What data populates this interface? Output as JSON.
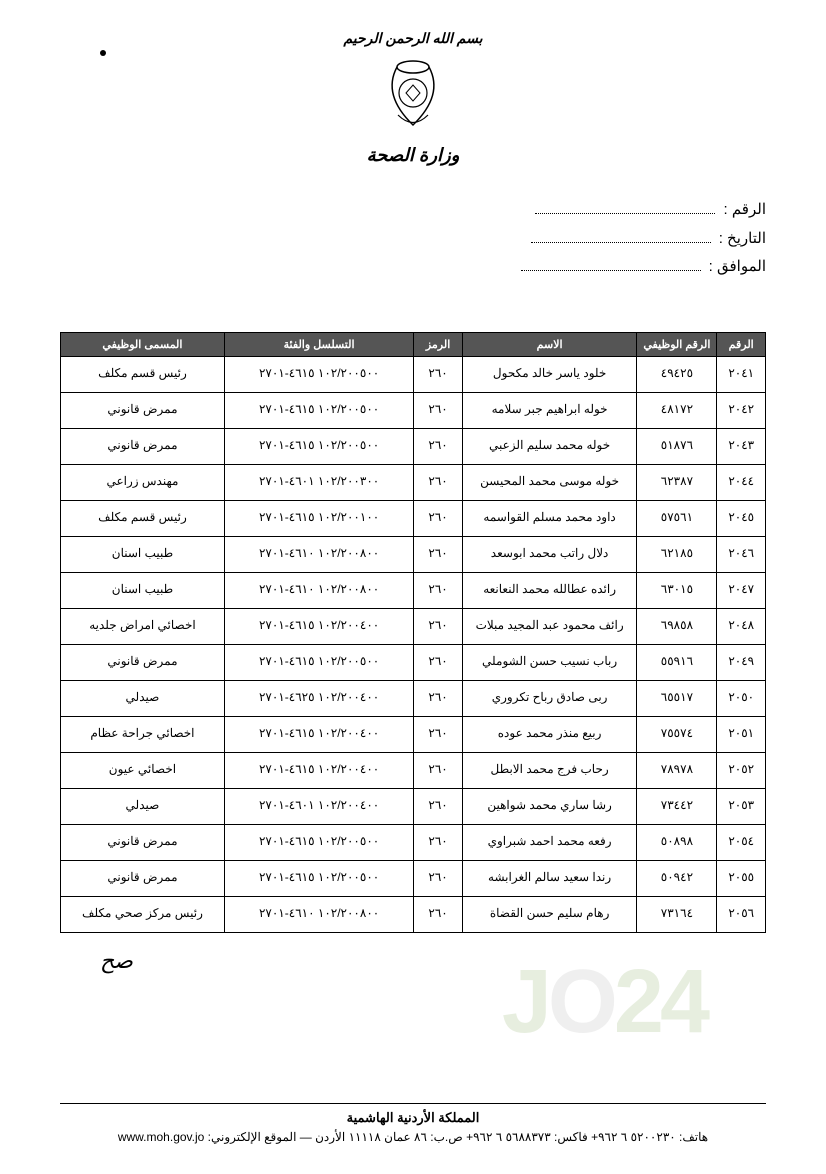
{
  "header": {
    "bismillah": "بسم الله الرحمن الرحيم",
    "ministry": "وزارة الصحة"
  },
  "meta": {
    "number_label": "الرقم :",
    "date_label": "التاريخ :",
    "corresponding_label": "الموافق :"
  },
  "table": {
    "columns": [
      "الرقم",
      "الرقم الوظيفي",
      "الاسم",
      "الرمز",
      "التسلسل والفئة",
      "المسمى الوظيفي"
    ],
    "col_widths_pct": [
      7,
      8,
      26,
      7,
      28,
      24
    ],
    "header_bg": "#555555",
    "header_fg": "#ffffff",
    "border_color": "#000000",
    "font_size": 12,
    "rows": [
      {
        "seq": "٢٠٤١",
        "id": "٤٩٤٢٥",
        "name": "خلود ياسر خالد مكحول",
        "code": "٢٦٠",
        "acct": "١٠٢/٢٠٠٥٠٠ ٤٦١٥-٢٧٠١",
        "title": "رئيس قسم مكلف"
      },
      {
        "seq": "٢٠٤٢",
        "id": "٤٨١٧٢",
        "name": "خوله ابراهيم جبر سلامه",
        "code": "٢٦٠",
        "acct": "١٠٢/٢٠٠٥٠٠ ٤٦١٥-٢٧٠١",
        "title": "ممرض قانوني"
      },
      {
        "seq": "٢٠٤٣",
        "id": "٥١٨٧٦",
        "name": "خوله محمد سليم الزعبي",
        "code": "٢٦٠",
        "acct": "١٠٢/٢٠٠٥٠٠ ٤٦١٥-٢٧٠١",
        "title": "ممرض قانوني"
      },
      {
        "seq": "٢٠٤٤",
        "id": "٦٢٣٨٧",
        "name": "خوله موسى محمد المحيسن",
        "code": "٢٦٠",
        "acct": "١٠٢/٢٠٠٣٠٠ ٤٦٠١-٢٧٠١",
        "title": "مهندس زراعي"
      },
      {
        "seq": "٢٠٤٥",
        "id": "٥٧٥٦١",
        "name": "داود محمد مسلم القواسمه",
        "code": "٢٦٠",
        "acct": "١٠٢/٢٠٠١٠٠ ٤٦١٥-٢٧٠١",
        "title": "رئيس قسم مكلف"
      },
      {
        "seq": "٢٠٤٦",
        "id": "٦٢١٨٥",
        "name": "دلال راتب محمد ابوسعد",
        "code": "٢٦٠",
        "acct": "١٠٢/٢٠٠٨٠٠ ٤٦١٠-٢٧٠١",
        "title": "طبيب اسنان"
      },
      {
        "seq": "٢٠٤٧",
        "id": "٦٣٠١٥",
        "name": "رائده عطالله محمد النعانعه",
        "code": "٢٦٠",
        "acct": "١٠٢/٢٠٠٨٠٠ ٤٦١٠-٢٧٠١",
        "title": "طبيب اسنان"
      },
      {
        "seq": "٢٠٤٨",
        "id": "٦٩٨٥٨",
        "name": "رائف محمود عبد المجيد مبلات",
        "code": "٢٦٠",
        "acct": "١٠٢/٢٠٠٤٠٠ ٤٦١٥-٢٧٠١",
        "title": "اخصائي امراض جلديه"
      },
      {
        "seq": "٢٠٤٩",
        "id": "٥٥٩١٦",
        "name": "رباب نسيب حسن الشوملي",
        "code": "٢٦٠",
        "acct": "١٠٢/٢٠٠٥٠٠ ٤٦١٥-٢٧٠١",
        "title": "ممرض قانوني"
      },
      {
        "seq": "٢٠٥٠",
        "id": "٦٥٥١٧",
        "name": "ربى صادق رباح تكروري",
        "code": "٢٦٠",
        "acct": "١٠٢/٢٠٠٤٠٠ ٤٦٢٥-٢٧٠١",
        "title": "صيدلي"
      },
      {
        "seq": "٢٠٥١",
        "id": "٧٥٥٧٤",
        "name": "ربيع منذر محمد عوده",
        "code": "٢٦٠",
        "acct": "١٠٢/٢٠٠٤٠٠ ٤٦١٥-٢٧٠١",
        "title": "اخصائي جراحة عظام"
      },
      {
        "seq": "٢٠٥٢",
        "id": "٧٨٩٧٨",
        "name": "رحاب فرج محمد الابطل",
        "code": "٢٦٠",
        "acct": "١٠٢/٢٠٠٤٠٠ ٤٦١٥-٢٧٠١",
        "title": "اخصائي عيون"
      },
      {
        "seq": "٢٠٥٣",
        "id": "٧٣٤٤٢",
        "name": "رشا ساري محمد شواهين",
        "code": "٢٦٠",
        "acct": "١٠٢/٢٠٠٤٠٠ ٤٦٠١-٢٧٠١",
        "title": "صيدلي"
      },
      {
        "seq": "٢٠٥٤",
        "id": "٥٠٨٩٨",
        "name": "رفعه محمد احمد شبراوي",
        "code": "٢٦٠",
        "acct": "١٠٢/٢٠٠٥٠٠ ٤٦١٥-٢٧٠١",
        "title": "ممرض قانوني"
      },
      {
        "seq": "٢٠٥٥",
        "id": "٥٠٩٤٢",
        "name": "رندا سعيد سالم الغرابشه",
        "code": "٢٦٠",
        "acct": "١٠٢/٢٠٠٥٠٠ ٤٦١٥-٢٧٠١",
        "title": "ممرض قانوني"
      },
      {
        "seq": "٢٠٥٦",
        "id": "٧٣١٦٤",
        "name": "رهام سليم حسن القضاة",
        "code": "٢٦٠",
        "acct": "١٠٢/٢٠٠٨٠٠ ٤٦١٠-٢٧٠١",
        "title": "رئيس مركز صحي مكلف"
      }
    ]
  },
  "signature": "صح",
  "footer": {
    "kingdom": "المملكة الأردنية الهاشمية",
    "contact": "هاتف: ٥٢٠٠٢٣٠ ٦ ٩٦٢+ فاكس: ٥٦٨٨٣٧٣ ٦ ٩٦٢+ ص.ب: ٨٦ عمان ١١١١٨ الأردن — الموقع الإلكتروني: www.moh.gov.jo"
  },
  "watermark": "JO24",
  "colors": {
    "background": "#ffffff",
    "text": "#000000",
    "watermark_green": "rgba(120,160,80,0.18)",
    "watermark_gray": "rgba(150,150,150,0.15)"
  }
}
